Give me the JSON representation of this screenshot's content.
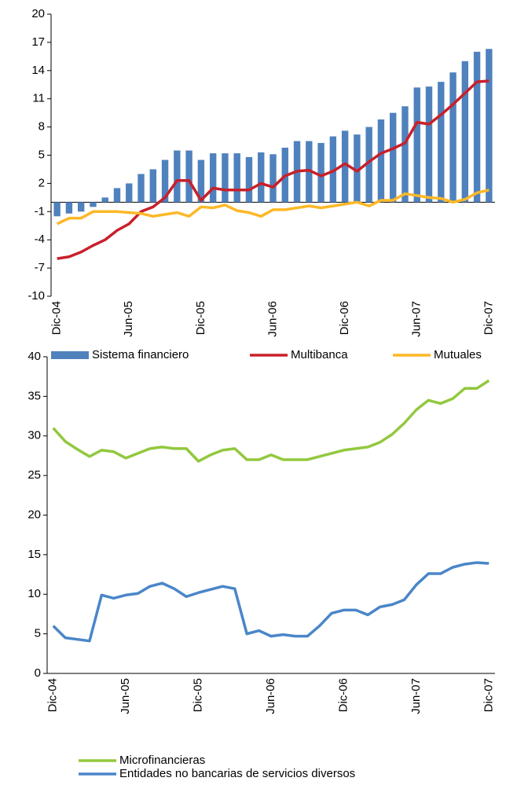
{
  "chart_data": [
    {
      "type": "combo",
      "categories": [
        "Dic-04",
        null,
        null,
        null,
        null,
        null,
        "Jun-05",
        null,
        null,
        null,
        null,
        null,
        "Dic-05",
        null,
        null,
        null,
        null,
        null,
        "Jun-06",
        null,
        null,
        null,
        null,
        null,
        "Dic-06",
        null,
        null,
        null,
        null,
        null,
        "Jun-07",
        null,
        null,
        null,
        null,
        null,
        "Dic-07"
      ],
      "series": [
        {
          "name": "Sistema financiero",
          "type": "bar",
          "color": "#4f81bd",
          "values": [
            -1.5,
            -1.2,
            -1.0,
            -0.5,
            0.5,
            1.5,
            2,
            3,
            3.5,
            4.5,
            5.5,
            5.5,
            4.5,
            5.2,
            5.2,
            5.2,
            4.8,
            5.3,
            5.1,
            5.8,
            6.5,
            6.5,
            6.3,
            7,
            7.6,
            7.2,
            8,
            8.8,
            9.5,
            10.2,
            12.2,
            12.3,
            12.8,
            13.8,
            15,
            16,
            16.3
          ]
        },
        {
          "name": "Multibanca",
          "type": "line",
          "color": "#c8202a",
          "values": [
            -6,
            -5.8,
            -5.3,
            -4.6,
            -4,
            -3,
            -2.3,
            -1,
            -0.5,
            0.5,
            2.3,
            2.3,
            0.2,
            1.5,
            1.3,
            1.3,
            1.3,
            2,
            1.6,
            2.8,
            3.3,
            3.4,
            2.8,
            3.3,
            4.1,
            3.3,
            4.3,
            5.2,
            5.7,
            6.3,
            8.5,
            8.3,
            9.3,
            10.4,
            11.6,
            12.8,
            12.9
          ]
        },
        {
          "name": "Mutuales",
          "type": "line",
          "color": "#fdb827",
          "values": [
            -2.3,
            -1.7,
            -1.7,
            -1,
            -1,
            -1,
            -1.1,
            -1.2,
            -1.5,
            -1.3,
            -1.1,
            -1.5,
            -0.5,
            -0.6,
            -0.3,
            -0.9,
            -1.1,
            -1.5,
            -0.8,
            -0.8,
            -0.6,
            -0.4,
            -0.6,
            -0.4,
            -0.2,
            0,
            -0.4,
            0.2,
            0.2,
            0.9,
            0.7,
            0.5,
            0.4,
            0,
            0.3,
            1,
            1.3
          ]
        }
      ],
      "ylim": [
        -10,
        20
      ],
      "yticks": [
        -10,
        -7,
        -4,
        -1,
        2,
        5,
        8,
        11,
        14,
        17,
        20
      ],
      "legend": "bottom"
    },
    {
      "type": "line",
      "categories": [
        "Dic-04",
        null,
        null,
        null,
        null,
        null,
        "Jun-05",
        null,
        null,
        null,
        null,
        null,
        "Dic-05",
        null,
        null,
        null,
        null,
        null,
        "Jun-06",
        null,
        null,
        null,
        null,
        null,
        "Dic-06",
        null,
        null,
        null,
        null,
        null,
        "Jun-07",
        null,
        null,
        null,
        null,
        null,
        "Dic-07"
      ],
      "series": [
        {
          "name": "Microfinancieras",
          "color": "#92c83e",
          "values": [
            31,
            29.3,
            28.3,
            27.4,
            28.2,
            28,
            27.2,
            27.8,
            28.4,
            28.6,
            28.4,
            28.4,
            26.8,
            27.6,
            28.2,
            28.4,
            27,
            27,
            27.6,
            27,
            27,
            27,
            27.4,
            27.8,
            28.2,
            28.4,
            28.6,
            29.2,
            30.2,
            31.6,
            33.3,
            34.5,
            34.1,
            34.7,
            36,
            36,
            37
          ]
        },
        {
          "name": "Entidades no bancarias de servicios diversos",
          "color": "#4a86c8",
          "values": [
            6,
            4.5,
            4.3,
            4.1,
            9.9,
            9.5,
            9.9,
            10.1,
            11,
            11.4,
            10.7,
            9.7,
            10.2,
            10.6,
            11,
            10.7,
            5,
            5.4,
            4.7,
            4.9,
            4.7,
            4.7,
            6,
            7.6,
            8,
            8,
            7.4,
            8.4,
            8.7,
            9.3,
            11.2,
            12.6,
            12.6,
            13.4,
            13.8,
            14,
            13.9
          ]
        }
      ],
      "ylim": [
        0,
        40
      ],
      "yticks": [
        0,
        5,
        10,
        15,
        20,
        25,
        30,
        35,
        40
      ],
      "legend": "bottom"
    }
  ]
}
